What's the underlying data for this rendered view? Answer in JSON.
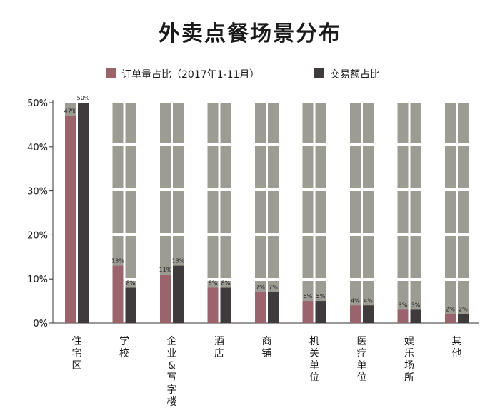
{
  "chart_data": {
    "type": "bar",
    "title": "外卖点餐场景分布",
    "categories": [
      "住宅区",
      "学校",
      "企业&写字楼",
      "酒店",
      "商铺",
      "机关单位",
      "医疗单位",
      "娱乐场所",
      "其他"
    ],
    "series": [
      {
        "name": "订单量占比（2017年1-11月）",
        "values": [
          47,
          13,
          11,
          8,
          7,
          5,
          4,
          3,
          2
        ],
        "labels": [
          "47%",
          "13%",
          "11%",
          "8%",
          "7%",
          "5%",
          "4%",
          "3%",
          "2%"
        ]
      },
      {
        "name": "交易额占比",
        "values": [
          50,
          8,
          13,
          8,
          7,
          5,
          4,
          3,
          2
        ],
        "labels": [
          "50%",
          "8%",
          "13%",
          "8%",
          "7%",
          "5%",
          "4%",
          "3%",
          "2%"
        ]
      }
    ],
    "y_ticks": [
      "0%",
      "10%",
      "20%",
      "30%",
      "40%",
      "50%"
    ],
    "ylim": [
      0,
      50
    ],
    "legend_position": "top",
    "colors": {
      "series_0": "#9b646c",
      "series_1": "#3f3a3c",
      "background_bar": "#9d9c93"
    }
  }
}
